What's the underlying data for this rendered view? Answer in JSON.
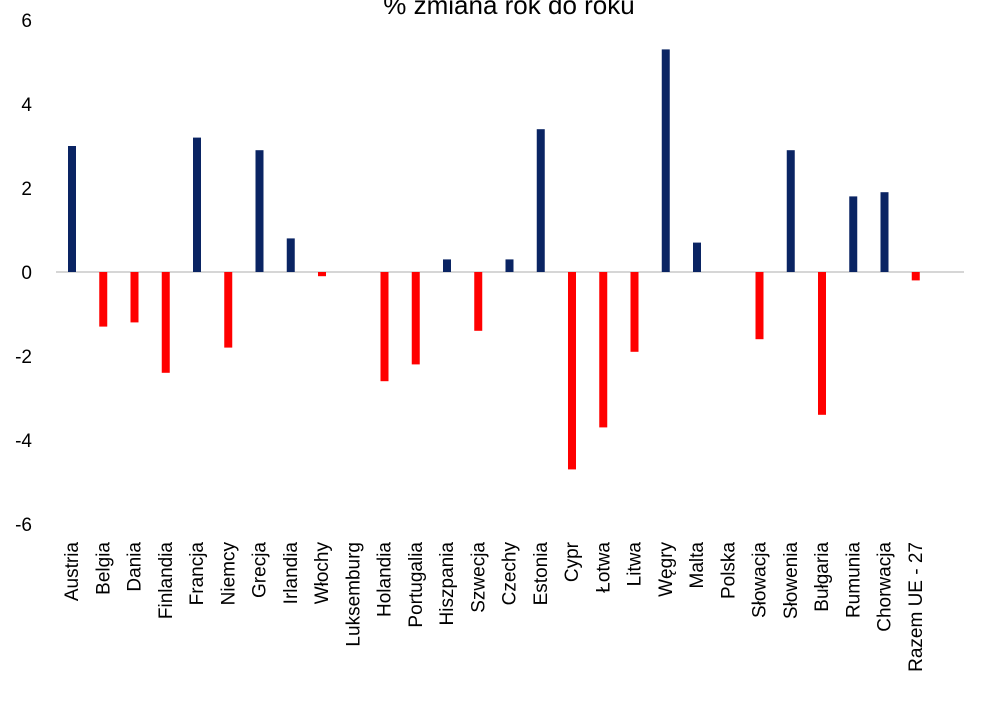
{
  "chart_data": {
    "type": "bar",
    "title": "% zmiana rok do roku",
    "xlabel": "",
    "ylabel": "",
    "ylim": [
      -6,
      6
    ],
    "yticks": [
      6,
      4,
      2,
      0,
      -2,
      -4,
      -6
    ],
    "grid": false,
    "colors": {
      "positive": "#0a2463",
      "negative": "#ff0000",
      "axis": "#c8c8c8"
    },
    "categories": [
      "Austria",
      "Belgia",
      "Dania",
      "Finlandia",
      "Francja",
      "Niemcy",
      "Grecja",
      "Irlandia",
      "Włochy",
      "Luksemburg",
      "Holandia",
      "Portugalia",
      "Hiszpania",
      "Szwecja",
      "Czechy",
      "Estonia",
      "Cypr",
      "Łotwa",
      "Litwa",
      "Węgry",
      "Malta",
      "Polska",
      "Słowacja",
      "Słowenia",
      "Bułgaria",
      "Rumunia",
      "Chorwacja",
      "Razem UE - 27"
    ],
    "values": [
      3.0,
      -1.3,
      -1.2,
      -2.4,
      3.2,
      -1.8,
      2.9,
      0.8,
      -0.1,
      0.0,
      -2.6,
      -2.2,
      0.3,
      -1.4,
      0.3,
      3.4,
      -4.7,
      -3.7,
      -1.9,
      5.3,
      0.7,
      0.0,
      -1.6,
      2.9,
      -3.4,
      1.8,
      1.9,
      -0.2
    ]
  }
}
